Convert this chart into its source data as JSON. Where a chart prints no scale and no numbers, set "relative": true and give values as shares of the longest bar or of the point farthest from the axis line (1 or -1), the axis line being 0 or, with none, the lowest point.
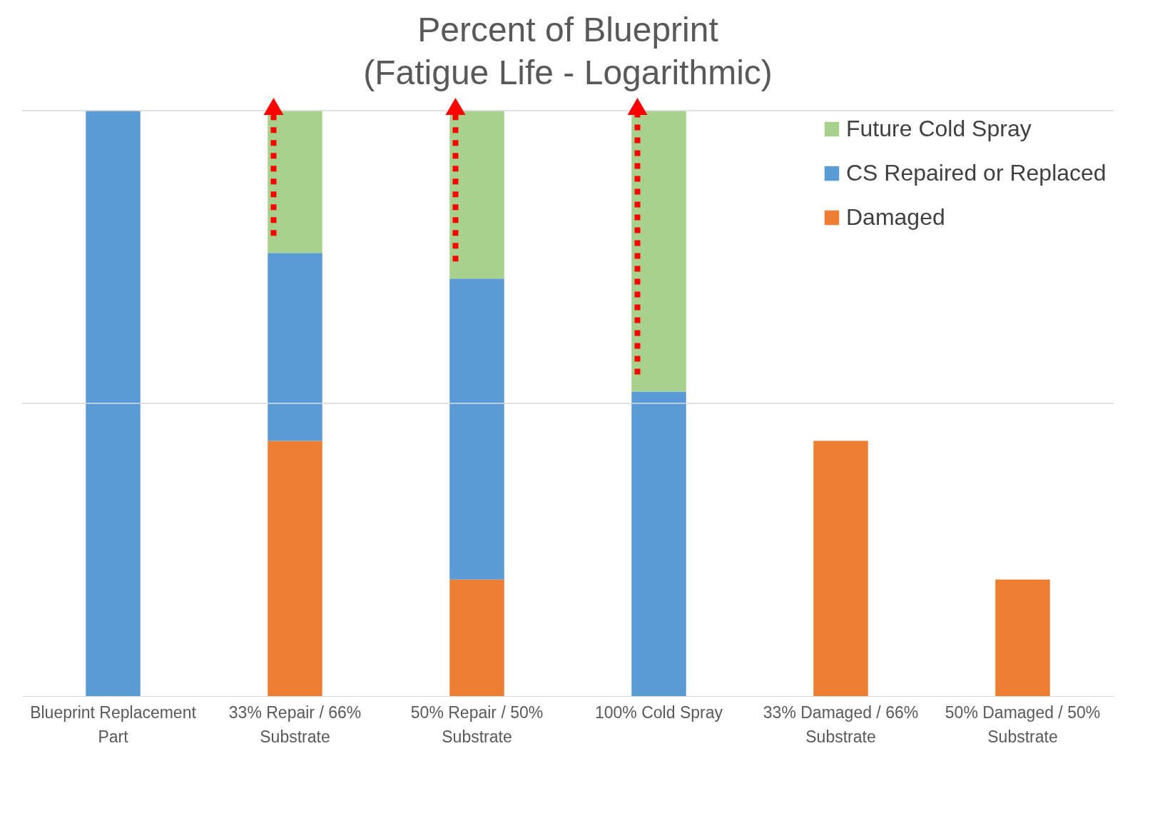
{
  "chart_data": {
    "type": "bar",
    "title": "Percent of Blueprint",
    "subtitle": "(Fatigue Life - Logarithmic)",
    "categories": [
      "Blueprint Replacement Part",
      "33% Repair / 66% Substrate",
      "50% Repair / 50% Substrate",
      "100% Cold Spray",
      "33% Damaged / 66% Substrate",
      "50% Damaged / 50% Substrate"
    ],
    "stacked": true,
    "relative": true,
    "legend": "top right",
    "ref_lines": [
      {
        "axis": "y",
        "value": 0.5,
        "color": "#d9d9d9"
      },
      {
        "axis": "y",
        "value": 1,
        "color": "#d9d9d9"
      }
    ],
    "series": [
      {
        "name": "Damaged",
        "color": "#ed7d31",
        "values": [
          null,
          0.436,
          0.199,
          null,
          0.436,
          0.199
        ]
      },
      {
        "name": "CS Repaired or Replaced",
        "color": "#5b9bd5",
        "values": [
          1.0,
          0.321,
          0.514,
          0.52,
          null,
          null
        ]
      },
      {
        "name": "Future Cold Spray",
        "color": "#a9d18e",
        "values": [
          null,
          0.243,
          0.287,
          0.48,
          null,
          null
        ]
      }
    ]
  }
}
